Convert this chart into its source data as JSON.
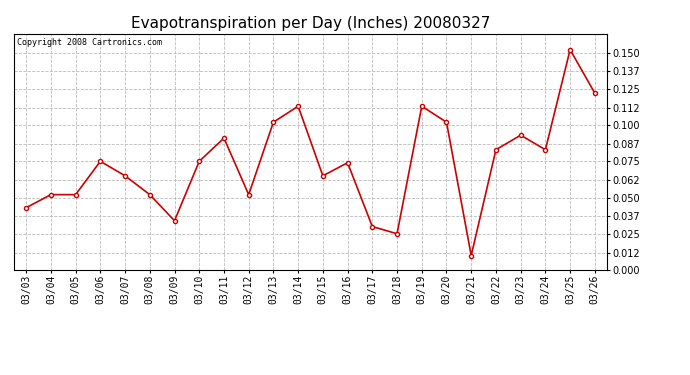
{
  "title": "Evapotranspiration per Day (Inches) 20080327",
  "copyright_text": "Copyright 2008 Cartronics.com",
  "dates": [
    "03/03",
    "03/04",
    "03/05",
    "03/06",
    "03/07",
    "03/08",
    "03/09",
    "03/10",
    "03/11",
    "03/12",
    "03/13",
    "03/14",
    "03/15",
    "03/16",
    "03/17",
    "03/18",
    "03/19",
    "03/20",
    "03/21",
    "03/22",
    "03/23",
    "03/24",
    "03/25",
    "03/26"
  ],
  "values": [
    0.043,
    0.052,
    0.052,
    0.075,
    0.065,
    0.052,
    0.034,
    0.075,
    0.091,
    0.052,
    0.102,
    0.113,
    0.065,
    0.074,
    0.03,
    0.025,
    0.113,
    0.102,
    0.01,
    0.083,
    0.093,
    0.083,
    0.152,
    0.122
  ],
  "line_color": "#cc0000",
  "marker": "o",
  "marker_size": 3,
  "ylim": [
    0.0,
    0.163
  ],
  "yticks": [
    0.0,
    0.012,
    0.025,
    0.037,
    0.05,
    0.062,
    0.075,
    0.087,
    0.1,
    0.112,
    0.125,
    0.137,
    0.15
  ],
  "background_color": "#ffffff",
  "grid_color": "#bbbbbb",
  "title_fontsize": 11,
  "copyright_fontsize": 6,
  "tick_fontsize": 7
}
